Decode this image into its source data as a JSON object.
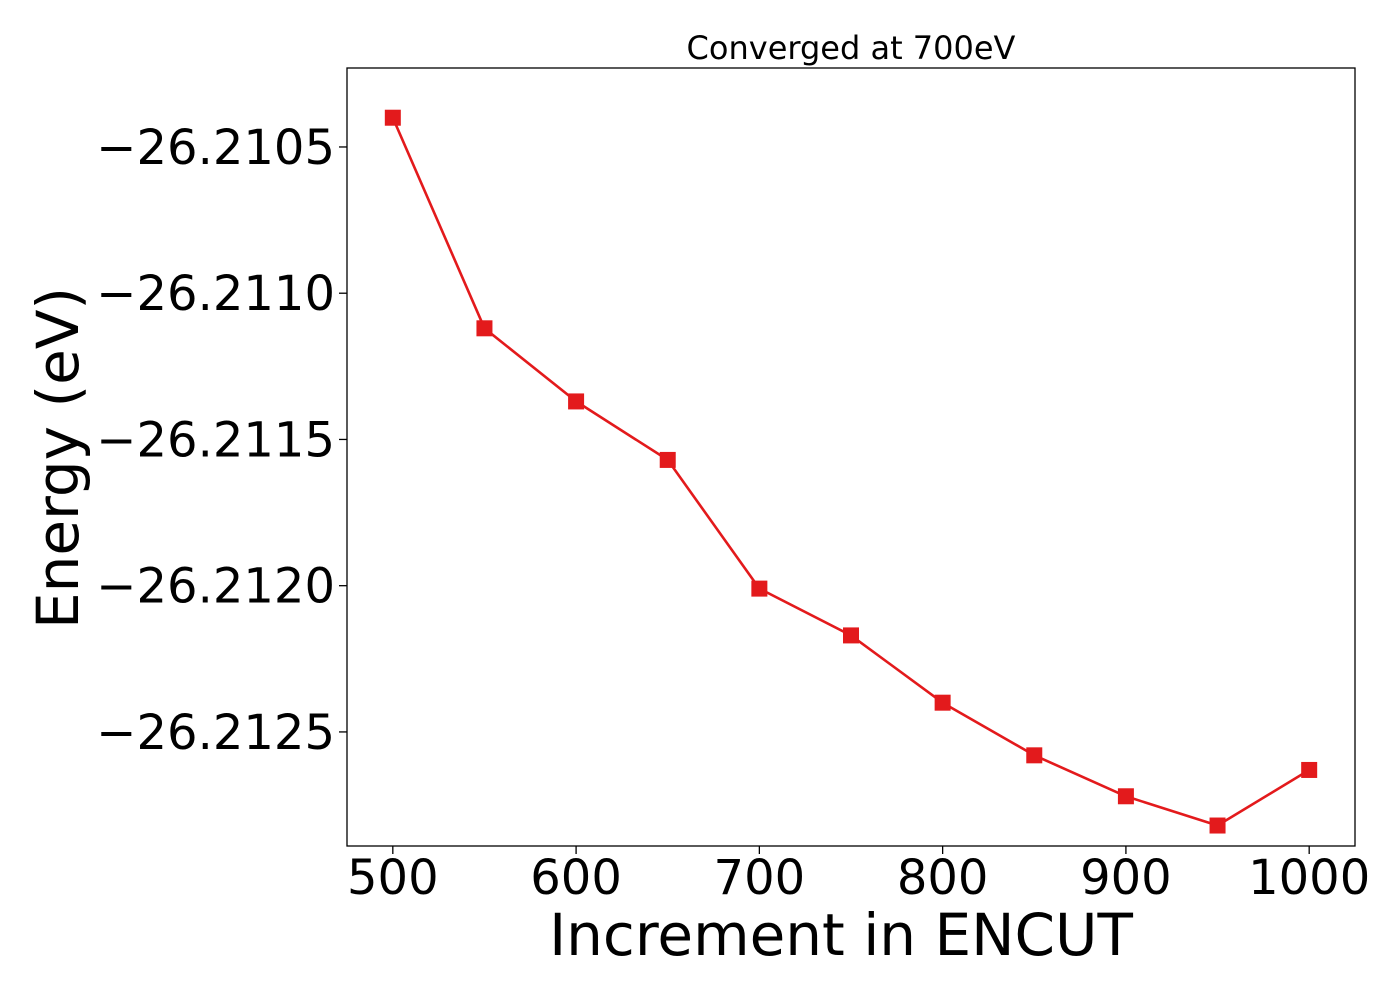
{
  "chart_data": {
    "type": "line",
    "title": "Converged at 700eV",
    "xlabel": "Increment in ENCUT",
    "ylabel": "Energy (eV)",
    "xlim": [
      475,
      1025
    ],
    "ylim": [
      -26.21289,
      -26.21023
    ],
    "x_ticks": [
      500,
      600,
      700,
      800,
      900,
      1000
    ],
    "x_tick_labels": [
      "500",
      "600",
      "700",
      "800",
      "900",
      "1000"
    ],
    "y_ticks": [
      -26.2105,
      -26.211,
      -26.2115,
      -26.212,
      -26.2125
    ],
    "y_tick_labels": [
      "−26.2105",
      "−26.2110",
      "−26.2115",
      "−26.2120",
      "−26.2125"
    ],
    "grid": false,
    "series": [
      {
        "color": "#e31a1c",
        "marker": "square",
        "x": [
          500,
          550,
          600,
          650,
          700,
          750,
          800,
          850,
          900,
          950,
          1000
        ],
        "y": [
          -26.2104,
          -26.21112,
          -26.21137,
          -26.21157,
          -26.21201,
          -26.21217,
          -26.2124,
          -26.21258,
          -26.21272,
          -26.21282,
          -26.21263
        ]
      }
    ]
  }
}
